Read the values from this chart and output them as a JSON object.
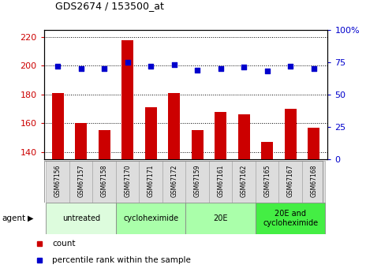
{
  "title": "GDS2674 / 153500_at",
  "samples": [
    "GSM67156",
    "GSM67157",
    "GSM67158",
    "GSM67170",
    "GSM67171",
    "GSM67172",
    "GSM67159",
    "GSM67161",
    "GSM67162",
    "GSM67165",
    "GSM67167",
    "GSM67168"
  ],
  "counts": [
    181,
    160,
    155,
    218,
    171,
    181,
    155,
    168,
    166,
    147,
    170,
    157
  ],
  "percentiles": [
    72,
    70,
    70,
    75,
    72,
    73,
    69,
    70,
    71,
    68,
    72,
    70
  ],
  "groups": [
    {
      "label": "untreated",
      "start": 0,
      "end": 3,
      "color": "#ddfcdd"
    },
    {
      "label": "cycloheximide",
      "start": 3,
      "end": 6,
      "color": "#aaffaa"
    },
    {
      "label": "20E",
      "start": 6,
      "end": 9,
      "color": "#aaffaa"
    },
    {
      "label": "20E and\ncycloheximide",
      "start": 9,
      "end": 12,
      "color": "#44ee44"
    }
  ],
  "ylim_left": [
    135,
    225
  ],
  "ylim_right": [
    0,
    100
  ],
  "yticks_left": [
    140,
    160,
    180,
    200,
    220
  ],
  "yticks_right": [
    0,
    25,
    50,
    75,
    100
  ],
  "bar_color": "#cc0000",
  "dot_color": "#0000cc",
  "bar_width": 0.5,
  "left_tick_color": "#cc0000",
  "right_tick_color": "#0000cc",
  "sample_box_color": "#dddddd",
  "background_plot": "#ffffff"
}
